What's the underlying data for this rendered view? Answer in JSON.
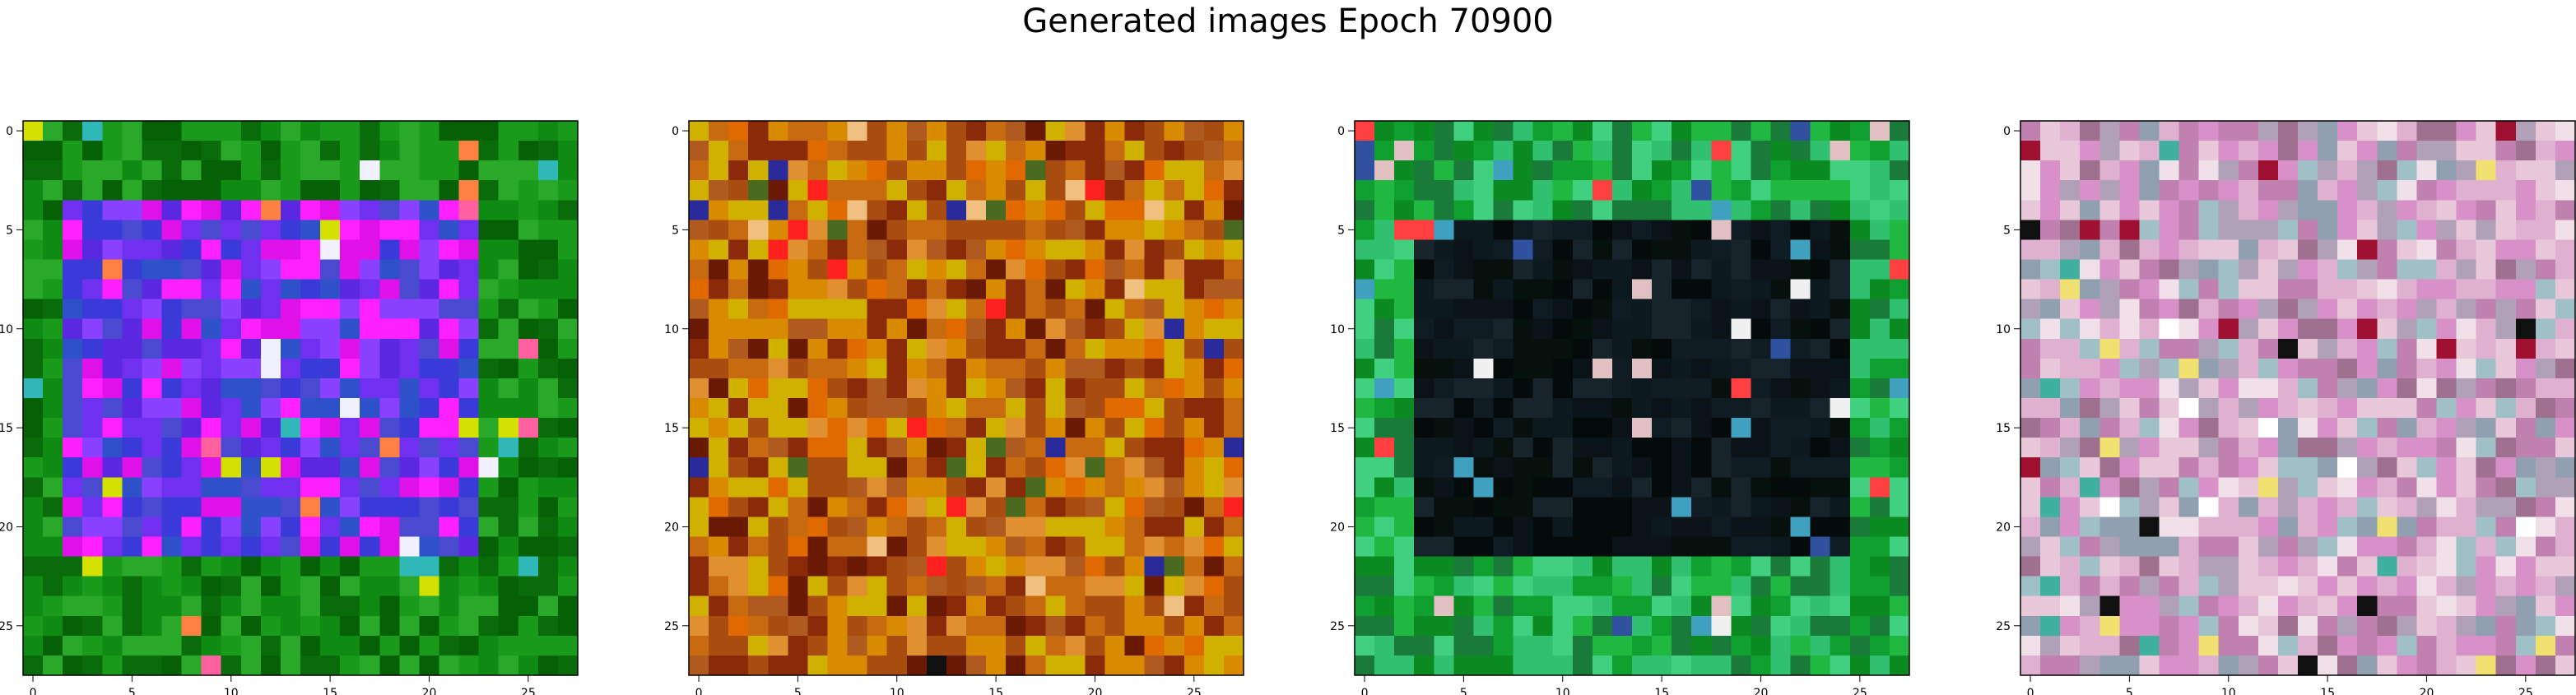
{
  "figure": {
    "title": "Generated images Epoch 70900"
  },
  "chart_data": [
    {
      "type": "heatmap",
      "description_palette": "green field with purple/magenta rectangle",
      "xticks": [
        "0",
        "5",
        "10",
        "15",
        "20",
        "25"
      ],
      "yticks": [
        "0",
        "5",
        "10",
        "15",
        "20",
        "25"
      ],
      "xlim": [
        -0.5,
        27.5
      ],
      "ylim": [
        27.5,
        -0.5
      ],
      "grid": false,
      "size": [
        28,
        28
      ],
      "palette": {
        "outer": [
          "#0a6b0a",
          "#0f8a12",
          "#1a9a1a",
          "#066006",
          "#2aa82a"
        ],
        "inner": [
          "#5a28e0",
          "#7030f0",
          "#3a3ad8",
          "#e010e8",
          "#ff20ff",
          "#4a4ad0",
          "#8a40ff",
          "#2e50c8"
        ],
        "accent": [
          "#f0f0ff",
          "#d4e000",
          "#ff8040",
          "#30b8b8",
          "#ff60a0"
        ]
      }
    },
    {
      "type": "heatmap",
      "description_palette": "orange/brown noise",
      "xticks": [
        "0",
        "5",
        "10",
        "15",
        "20",
        "25"
      ],
      "yticks": [
        "0",
        "5",
        "10",
        "15",
        "20",
        "25"
      ],
      "xlim": [
        -0.5,
        27.5
      ],
      "ylim": [
        27.5,
        -0.5
      ],
      "grid": false,
      "size": [
        28,
        28
      ],
      "palette": {
        "outer": [
          "#c86a10",
          "#d88a00",
          "#a84c10",
          "#8a2a08",
          "#d0b000",
          "#b05a20",
          "#e09030"
        ],
        "inner": [
          "#c86a10",
          "#d88a00",
          "#a84c10",
          "#8a2a08",
          "#d0b000",
          "#6a1a04",
          "#e06a00"
        ],
        "accent": [
          "#101010",
          "#f0c080",
          "#2a2a9a",
          "#4a6a20",
          "#ff2020"
        ]
      }
    },
    {
      "type": "heatmap",
      "description_palette": "green border with dark center",
      "xticks": [
        "0",
        "5",
        "10",
        "15",
        "20",
        "25"
      ],
      "yticks": [
        "0",
        "5",
        "10",
        "15",
        "20",
        "25"
      ],
      "xlim": [
        -0.5,
        27.5
      ],
      "ylim": [
        27.5,
        -0.5
      ],
      "grid": false,
      "size": [
        28,
        28
      ],
      "palette": {
        "outer": [
          "#10a030",
          "#0a8a20",
          "#20b840",
          "#30c070",
          "#1a7a3a",
          "#40d080"
        ],
        "inner": [
          "#050a0a",
          "#0a1418",
          "#101c24",
          "#06100c",
          "#18242c",
          "#0c1a20"
        ],
        "accent": [
          "#f0f0f0",
          "#ff4040",
          "#e0c0c0",
          "#3050a0",
          "#40a0c0"
        ]
      }
    },
    {
      "type": "heatmap",
      "description_palette": "pastel pink/mauve noise",
      "xticks": [
        "0",
        "5",
        "10",
        "15",
        "20",
        "25"
      ],
      "yticks": [
        "0",
        "5",
        "10",
        "15",
        "20",
        "25"
      ],
      "xlim": [
        -0.5,
        27.5
      ],
      "ylim": [
        27.5,
        -0.5
      ],
      "grid": false,
      "size": [
        28,
        28
      ],
      "palette": {
        "outer": [
          "#c080b0",
          "#e0b0d0",
          "#a07090",
          "#d890c8",
          "#b0a0b8",
          "#90a0b0",
          "#e8c8d8"
        ],
        "inner": [
          "#c080b0",
          "#e0b0d0",
          "#f0e0e8",
          "#d890c8",
          "#b0a0b8",
          "#a0c0c8",
          "#e8c8d8"
        ],
        "accent": [
          "#101010",
          "#a01030",
          "#f0e070",
          "#40b0a0",
          "#ffffff"
        ]
      }
    }
  ]
}
